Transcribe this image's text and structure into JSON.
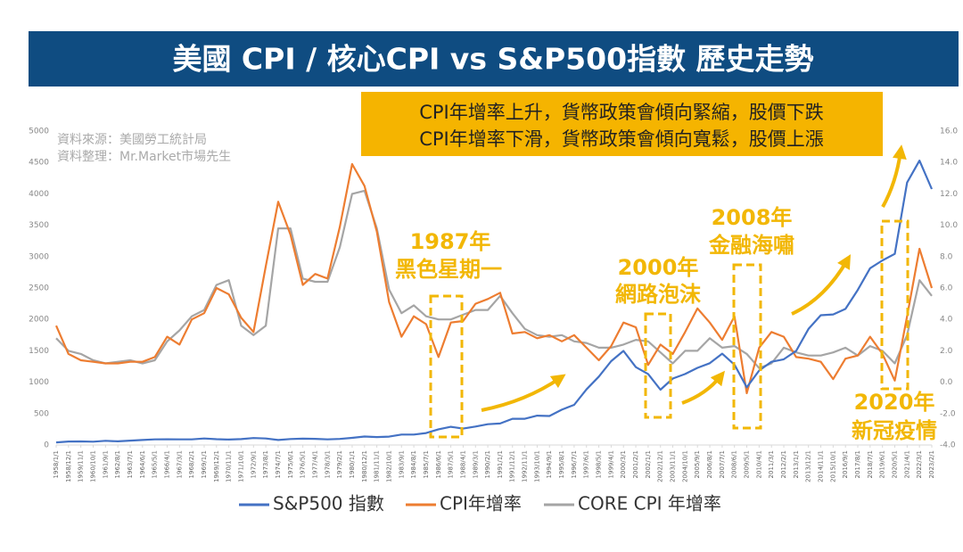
{
  "chart_data": {
    "type": "line",
    "title": "美國 CPI / 核心CPI vs S&P500指數 歷史走勢",
    "callout": [
      "CPI年增率上升，貨幣政策會傾向緊縮，股價下跌",
      "CPI年增率下滑，貨幣政策會傾向寬鬆，股價上漲"
    ],
    "source": [
      "資料來源：美國勞工統計局",
      "資料整理：Mr.Market市場先生"
    ],
    "annotations": [
      "1987年",
      "黑色星期一",
      "2000年",
      "網路泡沫",
      "2008年",
      "金融海嘯",
      "2020年",
      "新冠疫情"
    ],
    "categories": [
      "1958/1/1",
      "1958/12/1",
      "1959/11/1",
      "1960/10/1",
      "1961/9/1",
      "1962/8/1",
      "1963/7/1",
      "1964/6/1",
      "1965/5/1",
      "1966/4/1",
      "1967/3/1",
      "1968/2/1",
      "1969/1/1",
      "1969/12/1",
      "1970/11/1",
      "1971/10/1",
      "1972/9/1",
      "1973/8/1",
      "1974/7/1",
      "1975/6/1",
      "1976/5/1",
      "1977/4/1",
      "1978/3/1",
      "1979/2/1",
      "1980/1/1",
      "1980/12/1",
      "1981/11/1",
      "1982/10/1",
      "1983/9/1",
      "1984/8/1",
      "1985/7/1",
      "1986/6/1",
      "1987/5/1",
      "1988/4/1",
      "1989/3/1",
      "1990/2/1",
      "1991/1/1",
      "1991/12/1",
      "1992/11/1",
      "1993/10/1",
      "1994/9/1",
      "1995/8/1",
      "1996/7/1",
      "1997/6/1",
      "1998/5/1",
      "1999/4/1",
      "2000/3/1",
      "2001/2/1",
      "2002/1/1",
      "2002/12/1",
      "2003/11/1",
      "2004/10/1",
      "2005/9/1",
      "2006/8/1",
      "2007/7/1",
      "2008/6/1",
      "2009/5/1",
      "2010/4/1",
      "2011/3/1",
      "2012/2/1",
      "2013/1/1",
      "2013/12/1",
      "2014/11/1",
      "2015/10/1",
      "2016/9/1",
      "2017/8/1",
      "2018/7/1",
      "2019/6/1",
      "2020/5/1",
      "2021/4/1",
      "2022/3/1",
      "2023/2/1"
    ],
    "series": [
      {
        "name": "S&P500 指數",
        "color": "#4472c4",
        "values": [
          41,
          55,
          57,
          53,
          67,
          58,
          69,
          80,
          89,
          91,
          90,
          89,
          103,
          92,
          87,
          94,
          111,
          104,
          79,
          95,
          101,
          98,
          89,
          96,
          114,
          135,
          126,
          133,
          166,
          166,
          191,
          250,
          290,
          261,
          294,
          331,
          343,
          417,
          418,
          467,
          462,
          562,
          639,
          885,
          1090,
          1335,
          1498,
          1240,
          1130,
          880,
          1058,
          1130,
          1228,
          1303,
          1455,
          1280,
          919,
          1186,
          1325,
          1365,
          1498,
          1848,
          2067,
          2079,
          2168,
          2470,
          2816,
          2941,
          3044,
          4181,
          4530,
          4076
        ]
      },
      {
        "name": "CPI年增率",
        "color": "#ed7d31",
        "axis": "y2",
        "values": [
          3.6,
          1.8,
          1.4,
          1.3,
          1.2,
          1.2,
          1.3,
          1.3,
          1.6,
          2.9,
          2.4,
          4.0,
          4.4,
          6.0,
          5.6,
          4.1,
          3.2,
          7.4,
          11.5,
          9.4,
          6.2,
          6.9,
          6.6,
          9.9,
          13.9,
          12.5,
          9.6,
          5.1,
          2.9,
          4.2,
          3.7,
          1.6,
          3.8,
          3.9,
          5.0,
          5.3,
          5.7,
          3.1,
          3.2,
          2.8,
          3.0,
          2.6,
          3.0,
          2.2,
          1.4,
          2.3,
          3.8,
          3.5,
          1.1,
          2.4,
          1.8,
          3.2,
          4.7,
          3.8,
          2.7,
          4.2,
          -0.7,
          2.2,
          3.2,
          2.9,
          1.6,
          1.5,
          1.3,
          0.2,
          1.5,
          1.7,
          2.9,
          1.8,
          0.1,
          4.2,
          8.5,
          6.0
        ]
      },
      {
        "name": "CORE CPI 年增率",
        "color": "#a5a5a5",
        "axis": "y2",
        "values": [
          2.8,
          2.0,
          1.8,
          1.4,
          1.2,
          1.3,
          1.4,
          1.2,
          1.4,
          2.6,
          3.3,
          4.2,
          4.6,
          6.2,
          6.5,
          3.6,
          3.0,
          3.6,
          9.8,
          9.8,
          6.6,
          6.4,
          6.4,
          8.6,
          12.0,
          12.2,
          9.8,
          5.9,
          4.4,
          4.9,
          4.2,
          4.0,
          4.0,
          4.3,
          4.6,
          4.6,
          5.5,
          4.4,
          3.4,
          3.0,
          2.9,
          3.0,
          2.6,
          2.5,
          2.2,
          2.2,
          2.4,
          2.7,
          2.6,
          1.9,
          1.2,
          2.0,
          2.0,
          2.8,
          2.2,
          2.3,
          1.8,
          0.9,
          1.2,
          2.2,
          1.9,
          1.7,
          1.7,
          1.9,
          2.2,
          1.7,
          2.3,
          2.0,
          1.2,
          3.0,
          6.5,
          5.5
        ]
      }
    ],
    "ylim": [
      0,
      5000
    ],
    "yticks": [
      0,
      500,
      1000,
      1500,
      2000,
      2500,
      3000,
      3500,
      4000,
      4500,
      5000
    ],
    "y2lim": [
      -4,
      16
    ],
    "y2ticks": [
      {
        "value": -4,
        "label": "-4.0"
      },
      {
        "value": -2,
        "label": "-2.0"
      },
      {
        "value": 0,
        "label": "0.0"
      },
      {
        "value": 2,
        "label": "2.0"
      },
      {
        "value": 4,
        "label": "4.0"
      },
      {
        "value": 6,
        "label": "6.0"
      },
      {
        "value": 8,
        "label": "8.0"
      },
      {
        "value": 10,
        "label": "10.0"
      },
      {
        "value": 12,
        "label": "12.0"
      },
      {
        "value": 14,
        "label": "14.0"
      },
      {
        "value": 16,
        "label": "16.0"
      }
    ],
    "grid": false
  }
}
